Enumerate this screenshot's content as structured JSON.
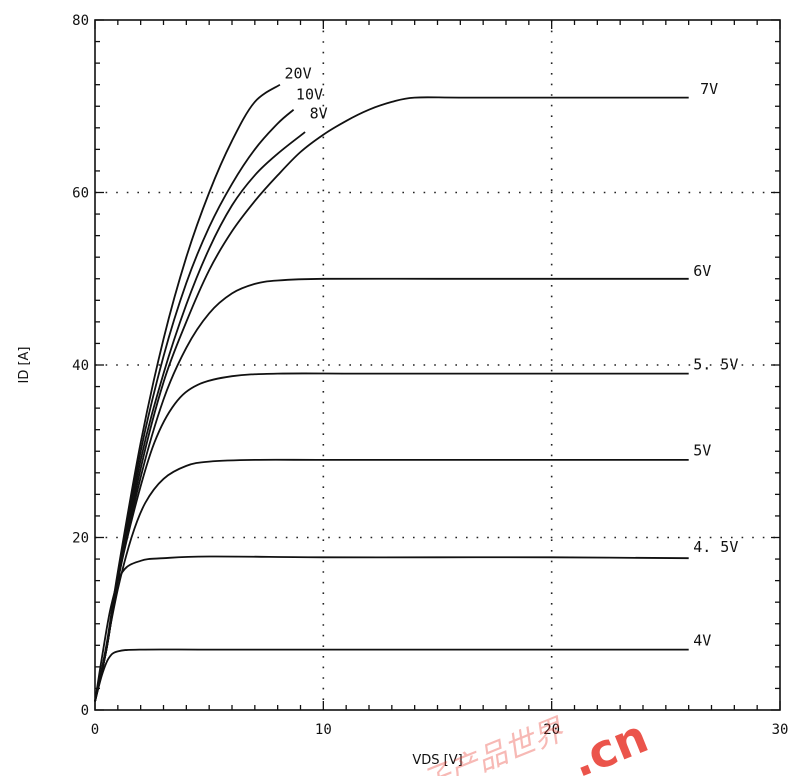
{
  "chart_data": {
    "type": "line",
    "xlabel": "VDS [V]",
    "ylabel": "ID [A]",
    "xlim": [
      0,
      30
    ],
    "ylim": [
      0,
      80
    ],
    "xticks": [
      0,
      10,
      20,
      30
    ],
    "yticks": [
      0,
      20,
      40,
      60,
      80
    ],
    "x_tick_labels": [
      "0",
      "10",
      "20",
      "30"
    ],
    "y_tick_labels": [
      "0",
      "20",
      "40",
      "60",
      "80"
    ],
    "grid": "dotted",
    "series": [
      {
        "name": "4V",
        "points": [
          [
            0,
            1
          ],
          [
            0.3,
            4
          ],
          [
            0.6,
            6
          ],
          [
            1.0,
            6.8
          ],
          [
            2,
            7
          ],
          [
            5,
            7
          ],
          [
            10,
            7
          ],
          [
            15,
            7
          ],
          [
            20,
            7
          ],
          [
            26,
            7
          ]
        ]
      },
      {
        "name": "4.5V",
        "points": [
          [
            0,
            1
          ],
          [
            0.3,
            6
          ],
          [
            0.7,
            12
          ],
          [
            1.2,
            16
          ],
          [
            2,
            17.3
          ],
          [
            3,
            17.6
          ],
          [
            5,
            17.8
          ],
          [
            10,
            17.7
          ],
          [
            15,
            17.7
          ],
          [
            20,
            17.7
          ],
          [
            26,
            17.6
          ]
        ]
      },
      {
        "name": "5V",
        "points": [
          [
            0,
            1
          ],
          [
            0.4,
            6
          ],
          [
            1.0,
            14
          ],
          [
            1.6,
            20
          ],
          [
            2.2,
            24
          ],
          [
            3,
            26.8
          ],
          [
            4,
            28.3
          ],
          [
            5,
            28.8
          ],
          [
            7,
            29
          ],
          [
            10,
            29
          ],
          [
            15,
            29
          ],
          [
            20,
            29
          ],
          [
            26,
            29
          ]
        ]
      },
      {
        "name": "5.5V",
        "points": [
          [
            0,
            1
          ],
          [
            0.5,
            7
          ],
          [
            1.0,
            15
          ],
          [
            1.8,
            24
          ],
          [
            2.6,
            31
          ],
          [
            3.5,
            35.5
          ],
          [
            4.5,
            37.7
          ],
          [
            6,
            38.7
          ],
          [
            8,
            39
          ],
          [
            12,
            39
          ],
          [
            20,
            39
          ],
          [
            26,
            39
          ]
        ]
      },
      {
        "name": "6V",
        "points": [
          [
            0,
            1
          ],
          [
            0.5,
            7
          ],
          [
            1.0,
            15
          ],
          [
            2,
            27
          ],
          [
            3,
            36
          ],
          [
            4,
            42
          ],
          [
            5,
            46
          ],
          [
            6,
            48.3
          ],
          [
            7,
            49.4
          ],
          [
            8,
            49.8
          ],
          [
            10,
            50
          ],
          [
            15,
            50
          ],
          [
            20,
            50
          ],
          [
            26,
            50
          ]
        ]
      },
      {
        "name": "7V",
        "points": [
          [
            0,
            1
          ],
          [
            0.5,
            7
          ],
          [
            1.0,
            15
          ],
          [
            2,
            28
          ],
          [
            3,
            38
          ],
          [
            4,
            45
          ],
          [
            5,
            51
          ],
          [
            6,
            55.5
          ],
          [
            7,
            59
          ],
          [
            8,
            62
          ],
          [
            9,
            64.7
          ],
          [
            10,
            66.7
          ],
          [
            11,
            68.3
          ],
          [
            12,
            69.6
          ],
          [
            13,
            70.5
          ],
          [
            14,
            71
          ],
          [
            16,
            71
          ],
          [
            20,
            71
          ],
          [
            26,
            71
          ]
        ]
      },
      {
        "name": "8V",
        "points": [
          [
            0,
            1
          ],
          [
            0.5,
            7
          ],
          [
            1.0,
            15
          ],
          [
            2,
            29
          ],
          [
            3,
            39
          ],
          [
            4,
            47
          ],
          [
            5,
            53.5
          ],
          [
            6,
            58.5
          ],
          [
            7,
            62
          ],
          [
            8,
            64.5
          ],
          [
            9.2,
            67
          ]
        ]
      },
      {
        "name": "10V",
        "points": [
          [
            0,
            1
          ],
          [
            0.5,
            7
          ],
          [
            1.0,
            15.5
          ],
          [
            2,
            30
          ],
          [
            3,
            41
          ],
          [
            4,
            49.5
          ],
          [
            5,
            56
          ],
          [
            6,
            61
          ],
          [
            7,
            65
          ],
          [
            8,
            68
          ],
          [
            8.7,
            69.6
          ]
        ]
      },
      {
        "name": "20V",
        "points": [
          [
            0,
            1
          ],
          [
            0.5,
            7.5
          ],
          [
            1.0,
            16
          ],
          [
            2,
            31
          ],
          [
            3,
            43
          ],
          [
            4,
            52.5
          ],
          [
            5,
            60
          ],
          [
            6,
            66
          ],
          [
            7,
            70.5
          ],
          [
            8.1,
            72.5
          ]
        ]
      }
    ],
    "curve_labels": [
      {
        "name": "20V",
        "text": "20V",
        "x": 8.3,
        "y": 73.2
      },
      {
        "name": "10V",
        "text": "10V",
        "x": 8.8,
        "y": 70.8
      },
      {
        "name": "8V",
        "text": "8V",
        "x": 9.4,
        "y": 68.6
      },
      {
        "name": "7V",
        "text": "7V",
        "x": 26.5,
        "y": 71.4
      },
      {
        "name": "6V",
        "text": "6V",
        "x": 26.2,
        "y": 50.3
      },
      {
        "name": "5.5V",
        "text": "5. 5V",
        "x": 26.2,
        "y": 39.5
      },
      {
        "name": "5V",
        "text": "5V",
        "x": 26.2,
        "y": 29.5
      },
      {
        "name": "4.5V",
        "text": "4. 5V",
        "x": 26.2,
        "y": 18.3
      },
      {
        "name": "4V",
        "text": "4V",
        "x": 26.2,
        "y": 7.5
      }
    ]
  },
  "watermark": {
    "text": ".cn",
    "cjk": "子产品世界",
    "color": "#e8362b"
  }
}
